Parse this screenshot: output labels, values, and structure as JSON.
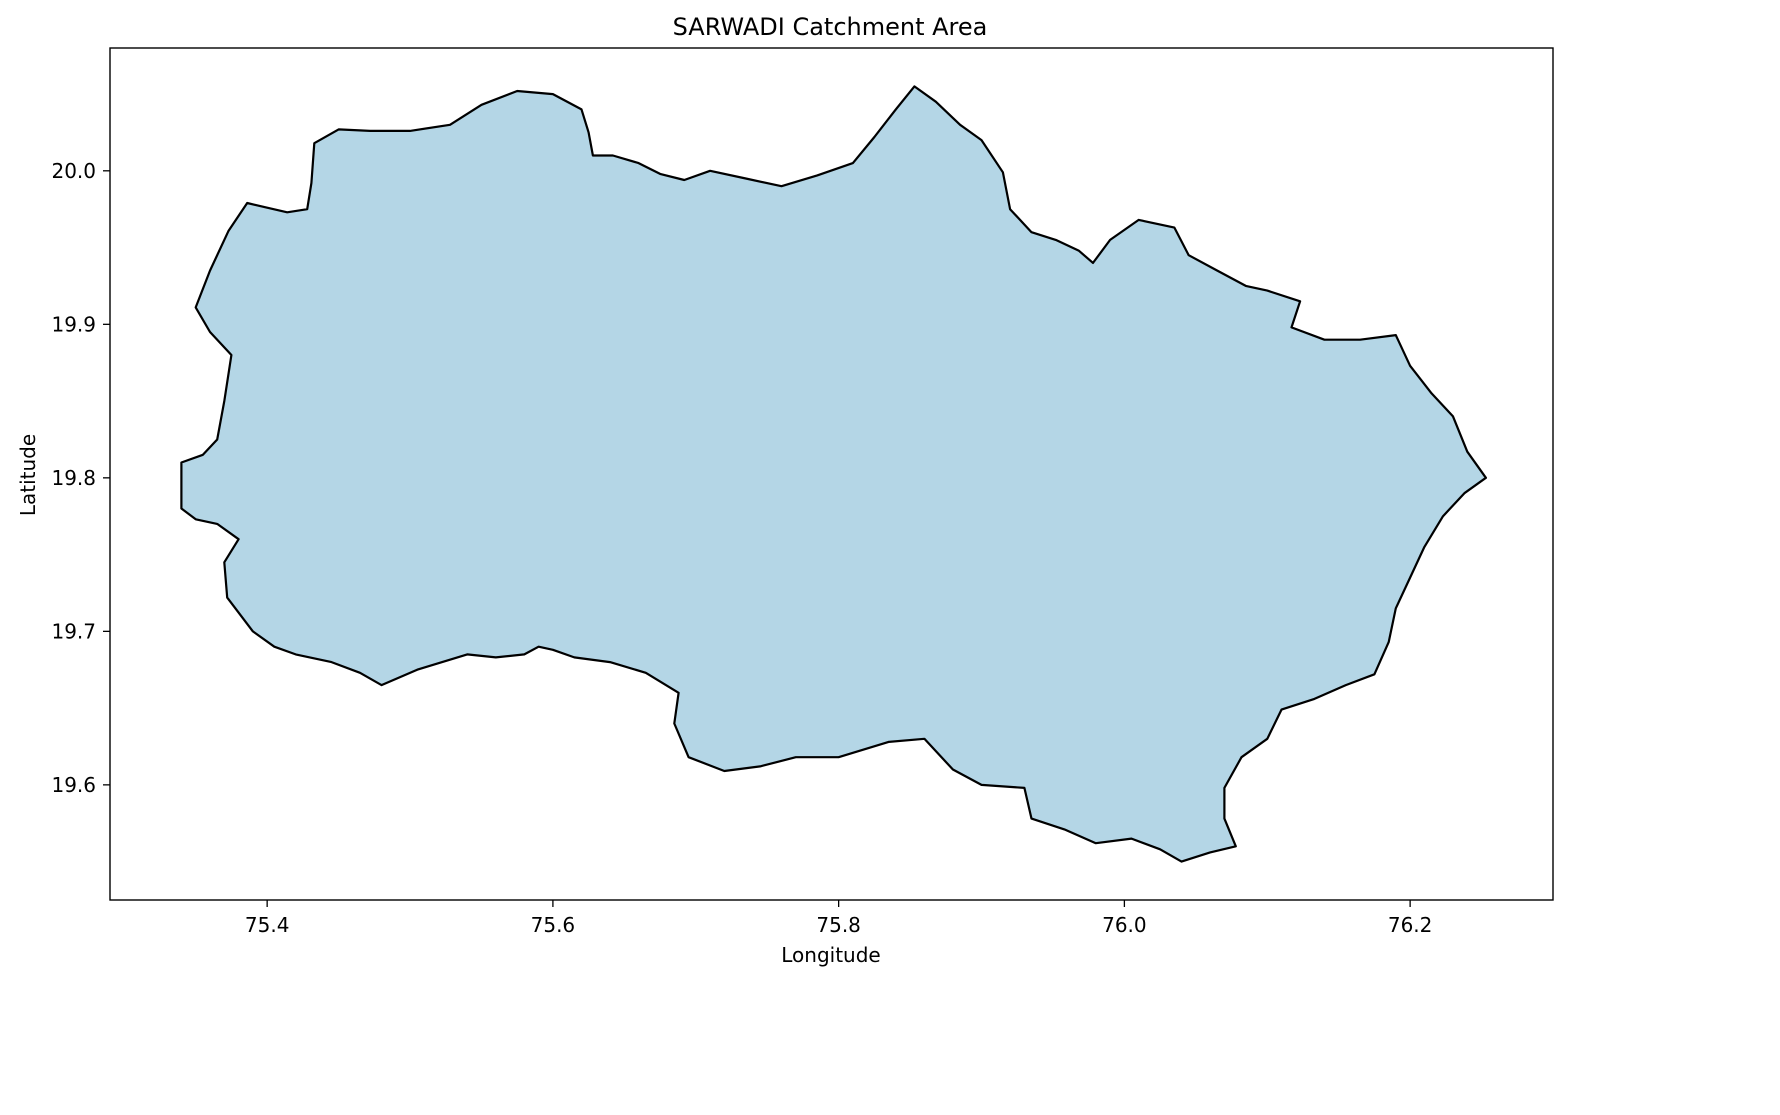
{
  "chart_data": {
    "type": "map",
    "title": "SARWADI Catchment Area",
    "xlabel": "Longitude",
    "ylabel": "Latitude",
    "xlim": [
      75.29,
      76.3
    ],
    "ylim": [
      19.525,
      20.08
    ],
    "xticks": [
      75.4,
      75.6,
      75.8,
      76.0,
      76.2
    ],
    "xtick_labels": [
      "75.4",
      "75.6",
      "75.8",
      "76.0",
      "76.2"
    ],
    "yticks": [
      19.6,
      19.7,
      19.8,
      19.9,
      20.0
    ],
    "ytick_labels": [
      "19.6",
      "19.7",
      "19.8",
      "19.9",
      "20.0"
    ],
    "grid": false,
    "fill_color": "#b4d6e6",
    "edge_color": "#000000",
    "boundary": [
      [
        75.35,
        19.911
      ],
      [
        75.36,
        19.935
      ],
      [
        75.373,
        19.961
      ],
      [
        75.386,
        19.979
      ],
      [
        75.4,
        19.976
      ],
      [
        75.414,
        19.973
      ],
      [
        75.428,
        19.975
      ],
      [
        75.431,
        19.992
      ],
      [
        75.433,
        20.018
      ],
      [
        75.45,
        20.027
      ],
      [
        75.472,
        20.026
      ],
      [
        75.5,
        20.026
      ],
      [
        75.528,
        20.03
      ],
      [
        75.55,
        20.043
      ],
      [
        75.575,
        20.052
      ],
      [
        75.6,
        20.05
      ],
      [
        75.62,
        20.04
      ],
      [
        75.625,
        20.025
      ],
      [
        75.628,
        20.01
      ],
      [
        75.642,
        20.01
      ],
      [
        75.66,
        20.005
      ],
      [
        75.675,
        19.998
      ],
      [
        75.692,
        19.994
      ],
      [
        75.71,
        20.0
      ],
      [
        75.735,
        19.995
      ],
      [
        75.76,
        19.99
      ],
      [
        75.785,
        19.997
      ],
      [
        75.81,
        20.005
      ],
      [
        75.825,
        20.022
      ],
      [
        75.84,
        20.04
      ],
      [
        75.853,
        20.055
      ],
      [
        75.868,
        20.045
      ],
      [
        75.885,
        20.03
      ],
      [
        75.9,
        20.02
      ],
      [
        75.915,
        19.999
      ],
      [
        75.92,
        19.975
      ],
      [
        75.935,
        19.96
      ],
      [
        75.952,
        19.955
      ],
      [
        75.968,
        19.948
      ],
      [
        75.978,
        19.94
      ],
      [
        75.99,
        19.955
      ],
      [
        76.01,
        19.968
      ],
      [
        76.035,
        19.963
      ],
      [
        76.045,
        19.945
      ],
      [
        76.065,
        19.935
      ],
      [
        76.085,
        19.925
      ],
      [
        76.1,
        19.922
      ],
      [
        76.123,
        19.915
      ],
      [
        76.117,
        19.898
      ],
      [
        76.14,
        19.89
      ],
      [
        76.165,
        19.89
      ],
      [
        76.19,
        19.893
      ],
      [
        76.2,
        19.873
      ],
      [
        76.215,
        19.855
      ],
      [
        76.23,
        19.84
      ],
      [
        76.24,
        19.817
      ],
      [
        76.253,
        19.8
      ],
      [
        76.238,
        19.79
      ],
      [
        76.223,
        19.775
      ],
      [
        76.21,
        19.755
      ],
      [
        76.2,
        19.735
      ],
      [
        76.19,
        19.715
      ],
      [
        76.185,
        19.693
      ],
      [
        76.175,
        19.672
      ],
      [
        76.155,
        19.665
      ],
      [
        76.133,
        19.656
      ],
      [
        76.11,
        19.649
      ],
      [
        76.1,
        19.63
      ],
      [
        76.082,
        19.618
      ],
      [
        76.07,
        19.598
      ],
      [
        76.07,
        19.578
      ],
      [
        76.078,
        19.56
      ],
      [
        76.06,
        19.556
      ],
      [
        76.04,
        19.55
      ],
      [
        76.025,
        19.558
      ],
      [
        76.005,
        19.565
      ],
      [
        75.98,
        19.562
      ],
      [
        75.958,
        19.571
      ],
      [
        75.935,
        19.578
      ],
      [
        75.93,
        19.598
      ],
      [
        75.9,
        19.6
      ],
      [
        75.88,
        19.61
      ],
      [
        75.86,
        19.63
      ],
      [
        75.835,
        19.628
      ],
      [
        75.8,
        19.618
      ],
      [
        75.77,
        19.618
      ],
      [
        75.745,
        19.612
      ],
      [
        75.72,
        19.609
      ],
      [
        75.695,
        19.618
      ],
      [
        75.685,
        19.64
      ],
      [
        75.688,
        19.66
      ],
      [
        75.665,
        19.673
      ],
      [
        75.64,
        19.68
      ],
      [
        75.615,
        19.683
      ],
      [
        75.6,
        19.688
      ],
      [
        75.59,
        19.69
      ],
      [
        75.58,
        19.685
      ],
      [
        75.56,
        19.683
      ],
      [
        75.54,
        19.685
      ],
      [
        75.505,
        19.675
      ],
      [
        75.48,
        19.665
      ],
      [
        75.465,
        19.673
      ],
      [
        75.445,
        19.68
      ],
      [
        75.42,
        19.685
      ],
      [
        75.405,
        19.69
      ],
      [
        75.39,
        19.7
      ],
      [
        75.372,
        19.722
      ],
      [
        75.37,
        19.745
      ],
      [
        75.38,
        19.76
      ],
      [
        75.365,
        19.77
      ],
      [
        75.35,
        19.773
      ],
      [
        75.34,
        19.78
      ],
      [
        75.34,
        19.81
      ],
      [
        75.355,
        19.815
      ],
      [
        75.365,
        19.825
      ],
      [
        75.37,
        19.85
      ],
      [
        75.375,
        19.88
      ],
      [
        75.36,
        19.895
      ],
      [
        75.35,
        19.911
      ]
    ]
  }
}
